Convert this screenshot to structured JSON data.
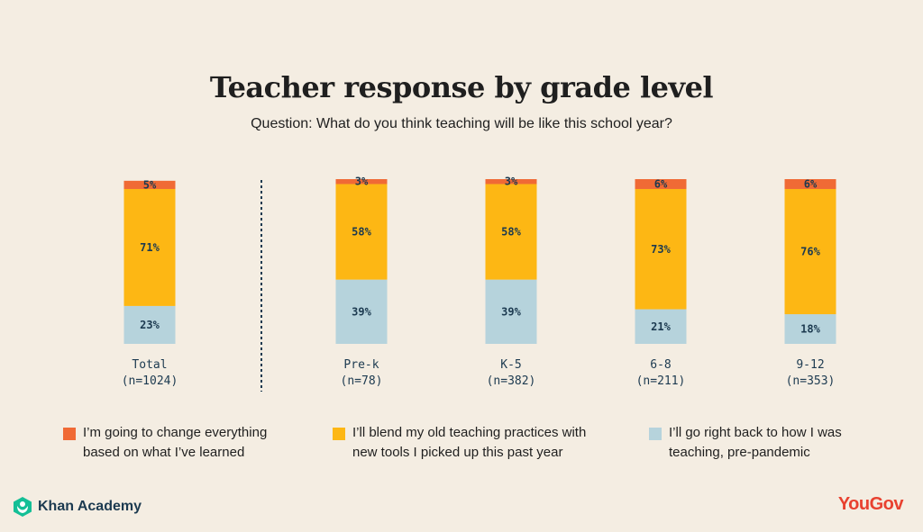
{
  "title": "Teacher response by grade level",
  "subtitle": "Question: What do you think teaching will be like this school year?",
  "colors": {
    "change": "#f06a35",
    "blend": "#fdb714",
    "back": "#b6d3dc",
    "background": "#f4ede2"
  },
  "chart_data": {
    "type": "bar",
    "stacked": true,
    "categories": [
      {
        "label": "Total",
        "n": "(n=1024)"
      },
      {
        "label": "Pre-k",
        "n": "(n=78)"
      },
      {
        "label": "K-5",
        "n": "(n=382)"
      },
      {
        "label": "6-8",
        "n": "(n=211)"
      },
      {
        "label": "9-12",
        "n": "(n=353)"
      }
    ],
    "series": [
      {
        "key": "back",
        "values": [
          23,
          39,
          39,
          21,
          18
        ]
      },
      {
        "key": "blend",
        "values": [
          71,
          58,
          58,
          73,
          76
        ]
      },
      {
        "key": "change",
        "values": [
          5,
          3,
          3,
          6,
          6
        ]
      }
    ],
    "value_suffix": "%",
    "separator_after_category": 0
  },
  "legend": [
    {
      "key": "change",
      "label": "I’m going to change everything\nbased on what I’ve learned"
    },
    {
      "key": "blend",
      "label": "I’ll blend my old teaching practices with\nnew tools I picked up this past year"
    },
    {
      "key": "back",
      "label": "I’ll go right back to how I was\nteaching, pre-pandemic"
    }
  ],
  "footer": {
    "left_brand": "Khan Academy",
    "right_brand": "YouGov"
  }
}
